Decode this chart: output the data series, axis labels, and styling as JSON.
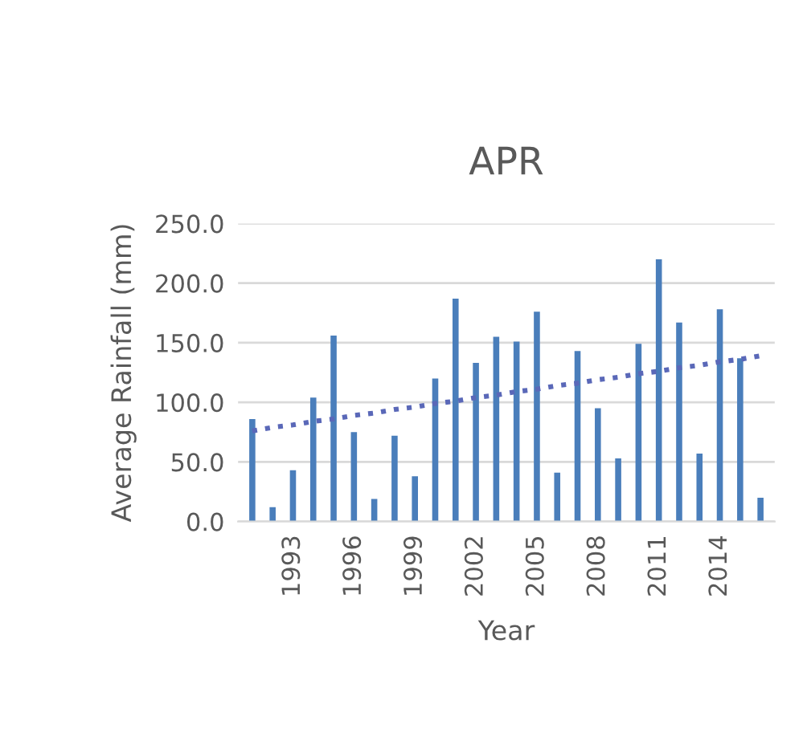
{
  "chart_data": {
    "type": "bar",
    "title": "APR",
    "xlabel": "Year",
    "ylabel": "Average Rainfall (mm)",
    "categories": [
      null,
      null,
      "1993",
      null,
      null,
      "1996",
      null,
      null,
      "1999",
      null,
      null,
      "2002",
      null,
      null,
      "2005",
      null,
      null,
      "2008",
      null,
      null,
      "2011",
      null,
      null,
      "2014",
      null,
      null
    ],
    "series": [
      {
        "color": "#4a7ebb",
        "values": [
          86,
          12,
          43,
          104,
          156,
          75,
          19,
          72,
          38,
          120,
          187,
          133,
          155,
          151,
          176,
          41,
          143,
          95,
          53,
          149,
          220,
          167,
          57,
          178,
          137,
          20
        ]
      },
      {
        "type": "line",
        "color": "#5a68b8",
        "line_style": "dotted",
        "values": [
          76,
          79,
          81,
          84,
          86,
          89,
          91,
          94,
          96,
          99,
          101,
          104,
          106,
          109,
          111,
          114,
          116,
          119,
          121,
          124,
          126,
          129,
          131,
          134,
          136,
          139
        ]
      }
    ],
    "ylim": [
      0,
      250
    ],
    "yticks": [
      {
        "value": 0,
        "label": "0.0"
      },
      {
        "value": 50,
        "label": "50.0"
      },
      {
        "value": 100,
        "label": "100.0"
      },
      {
        "value": 150,
        "label": "150.0"
      },
      {
        "value": 200,
        "label": "200.0"
      },
      {
        "value": 250,
        "label": "250.0"
      }
    ],
    "grid": "y",
    "legend": false
  }
}
